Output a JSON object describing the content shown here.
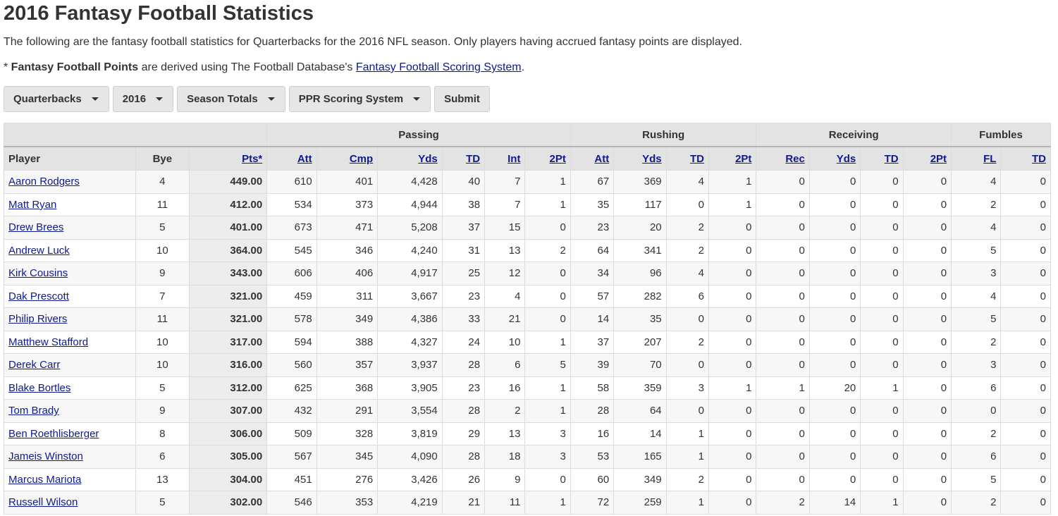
{
  "page": {
    "title": "2016 Fantasy Football Statistics",
    "intro": "The following are the fantasy football statistics for Quarterbacks for the 2016 NFL season. Only players having accrued fantasy points are displayed.",
    "note_prefix": "* ",
    "note_bold": "Fantasy Football Points",
    "note_middle": " are derived using The Football Database's ",
    "note_link": "Fantasy Football Scoring System",
    "note_suffix": "."
  },
  "filters": {
    "position": "Quarterbacks",
    "season": "2016",
    "span": "Season Totals",
    "scoring": "PPR Scoring System",
    "submit": "Submit"
  },
  "table": {
    "groups": {
      "passing": "Passing",
      "rushing": "Rushing",
      "receiving": "Receiving",
      "fumbles": "Fumbles"
    },
    "headers": [
      "Player",
      "Bye",
      "Pts*",
      "Att",
      "Cmp",
      "Yds",
      "TD",
      "Int",
      "2Pt",
      "Att",
      "Yds",
      "TD",
      "2Pt",
      "Rec",
      "Yds",
      "TD",
      "2Pt",
      "FL",
      "TD"
    ],
    "rows": [
      [
        "Aaron Rodgers",
        "4",
        "449.00",
        "610",
        "401",
        "4,428",
        "40",
        "7",
        "1",
        "67",
        "369",
        "4",
        "1",
        "0",
        "0",
        "0",
        "0",
        "4",
        "0"
      ],
      [
        "Matt Ryan",
        "11",
        "412.00",
        "534",
        "373",
        "4,944",
        "38",
        "7",
        "1",
        "35",
        "117",
        "0",
        "1",
        "0",
        "0",
        "0",
        "0",
        "2",
        "0"
      ],
      [
        "Drew Brees",
        "5",
        "401.00",
        "673",
        "471",
        "5,208",
        "37",
        "15",
        "0",
        "23",
        "20",
        "2",
        "0",
        "0",
        "0",
        "0",
        "0",
        "4",
        "0"
      ],
      [
        "Andrew Luck",
        "10",
        "364.00",
        "545",
        "346",
        "4,240",
        "31",
        "13",
        "2",
        "64",
        "341",
        "2",
        "0",
        "0",
        "0",
        "0",
        "0",
        "5",
        "0"
      ],
      [
        "Kirk Cousins",
        "9",
        "343.00",
        "606",
        "406",
        "4,917",
        "25",
        "12",
        "0",
        "34",
        "96",
        "4",
        "0",
        "0",
        "0",
        "0",
        "0",
        "3",
        "0"
      ],
      [
        "Dak Prescott",
        "7",
        "321.00",
        "459",
        "311",
        "3,667",
        "23",
        "4",
        "0",
        "57",
        "282",
        "6",
        "0",
        "0",
        "0",
        "0",
        "0",
        "4",
        "0"
      ],
      [
        "Philip Rivers",
        "11",
        "321.00",
        "578",
        "349",
        "4,386",
        "33",
        "21",
        "0",
        "14",
        "35",
        "0",
        "0",
        "0",
        "0",
        "0",
        "0",
        "5",
        "0"
      ],
      [
        "Matthew Stafford",
        "10",
        "317.00",
        "594",
        "388",
        "4,327",
        "24",
        "10",
        "1",
        "37",
        "207",
        "2",
        "0",
        "0",
        "0",
        "0",
        "0",
        "2",
        "0"
      ],
      [
        "Derek Carr",
        "10",
        "316.00",
        "560",
        "357",
        "3,937",
        "28",
        "6",
        "5",
        "39",
        "70",
        "0",
        "0",
        "0",
        "0",
        "0",
        "0",
        "3",
        "0"
      ],
      [
        "Blake Bortles",
        "5",
        "312.00",
        "625",
        "368",
        "3,905",
        "23",
        "16",
        "1",
        "58",
        "359",
        "3",
        "1",
        "1",
        "20",
        "1",
        "0",
        "6",
        "0"
      ],
      [
        "Tom Brady",
        "9",
        "307.00",
        "432",
        "291",
        "3,554",
        "28",
        "2",
        "1",
        "28",
        "64",
        "0",
        "0",
        "0",
        "0",
        "0",
        "0",
        "0",
        "0"
      ],
      [
        "Ben Roethlisberger",
        "8",
        "306.00",
        "509",
        "328",
        "3,819",
        "29",
        "13",
        "3",
        "16",
        "14",
        "1",
        "0",
        "0",
        "0",
        "0",
        "0",
        "2",
        "0"
      ],
      [
        "Jameis Winston",
        "6",
        "305.00",
        "567",
        "345",
        "4,090",
        "28",
        "18",
        "3",
        "53",
        "165",
        "1",
        "0",
        "0",
        "0",
        "0",
        "0",
        "6",
        "0"
      ],
      [
        "Marcus Mariota",
        "13",
        "304.00",
        "451",
        "276",
        "3,426",
        "26",
        "9",
        "0",
        "60",
        "349",
        "2",
        "0",
        "0",
        "0",
        "0",
        "0",
        "5",
        "0"
      ],
      [
        "Russell Wilson",
        "5",
        "302.00",
        "546",
        "353",
        "4,219",
        "21",
        "11",
        "1",
        "72",
        "259",
        "1",
        "0",
        "2",
        "14",
        "1",
        "0",
        "2",
        "0"
      ]
    ]
  }
}
